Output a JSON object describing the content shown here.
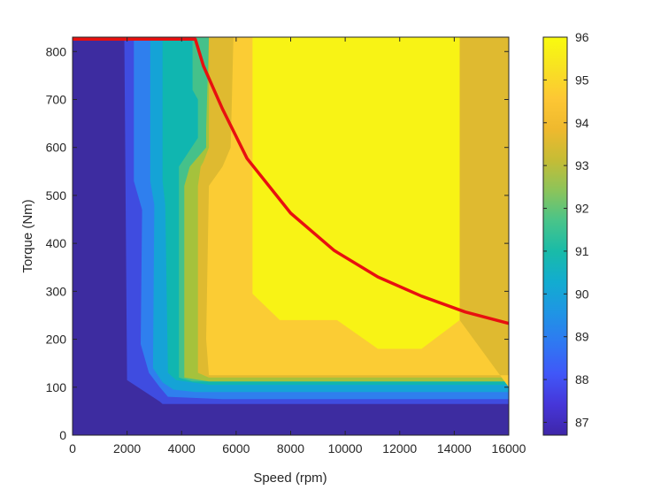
{
  "chart_data": {
    "type": "heatmap",
    "subtype": "filled-contour",
    "title": "",
    "xlabel": "Speed (rpm)",
    "ylabel": "Torque (Nm)",
    "xlim": [
      0,
      16000
    ],
    "ylim": [
      0,
      830
    ],
    "xticks": [
      0,
      2000,
      4000,
      6000,
      8000,
      10000,
      12000,
      14000,
      16000
    ],
    "yticks": [
      0,
      100,
      200,
      300,
      400,
      500,
      600,
      700,
      800
    ],
    "colorbar": {
      "label": "",
      "range": [
        86.7,
        96
      ],
      "ticks": [
        87,
        88,
        89,
        90,
        91,
        92,
        93,
        94,
        95,
        96
      ]
    },
    "grid": false,
    "colormap": "parula",
    "contour_regions": [
      {
        "level": 86.7,
        "color": "#3d2ca0",
        "x": [
          0,
          16000,
          16000,
          0
        ],
        "y": [
          0,
          0,
          830,
          830
        ]
      },
      {
        "level": 87.9,
        "color": "#3f4ce0",
        "x": [
          1900,
          2000,
          3200,
          3300,
          16000,
          16000,
          16000,
          4400,
          4400
        ],
        "y": [
          830,
          115,
          70,
          65,
          65,
          830,
          830,
          830,
          830
        ]
      },
      {
        "level": 88.9,
        "color": "#2f7fee",
        "x": [
          2250,
          2250,
          2550,
          2500,
          2800,
          3200,
          3500,
          5500,
          16000,
          16000,
          4500,
          4500,
          2500
        ],
        "y": [
          830,
          530,
          470,
          190,
          130,
          100,
          80,
          75,
          75,
          830,
          830,
          830,
          830
        ]
      },
      {
        "level": 89.9,
        "color": "#15a3d6",
        "x": [
          2850,
          2850,
          3000,
          2950,
          3300,
          3700,
          4500,
          16000,
          16000,
          4400
        ],
        "y": [
          830,
          530,
          480,
          140,
          110,
          95,
          90,
          90,
          830,
          830
        ]
      },
      {
        "level": 90.9,
        "color": "#10b6b0",
        "x": [
          3300,
          3300,
          3400,
          3500,
          3800,
          5000,
          16000,
          16000,
          4400
        ],
        "y": [
          830,
          530,
          480,
          130,
          115,
          105,
          105,
          830,
          830
        ]
      },
      {
        "level": 91.9,
        "color": "#45c18a",
        "x": [
          4400,
          4400,
          4600,
          4600,
          3900,
          3900,
          4400,
          5000,
          16000,
          16000
        ],
        "y": [
          830,
          720,
          700,
          620,
          560,
          120,
          112,
          112,
          112,
          830
        ]
      },
      {
        "level": 92.9,
        "color": "#a5c23c",
        "x": [
          4500,
          5000,
          4900,
          4900,
          4300,
          4100,
          4100,
          5000,
          16000,
          16000
        ],
        "y": [
          830,
          830,
          640,
          600,
          560,
          520,
          120,
          112,
          112,
          830
        ]
      },
      {
        "level": 93.9,
        "color": "#dfba30",
        "x": [
          4800,
          5000,
          5000,
          4800,
          4700,
          4600,
          4600,
          5000,
          16000,
          16000,
          5000
        ],
        "y": [
          830,
          830,
          600,
          570,
          560,
          520,
          130,
          120,
          120,
          830,
          830
        ]
      },
      {
        "level": 94.9,
        "color": "#fbcc34",
        "x": [
          5000,
          5900,
          5800,
          5500,
          5000,
          4900,
          5000,
          16000,
          16000,
          14200,
          14200,
          5200
        ],
        "y": [
          830,
          830,
          600,
          560,
          520,
          200,
          125,
          125,
          100,
          240,
          830,
          830
        ]
      },
      {
        "level": 95.7,
        "color": "#f8f315",
        "x": [
          6600,
          6600,
          7600,
          9700,
          11200,
          12800,
          14200,
          14200
        ],
        "y": [
          830,
          295,
          240,
          240,
          180,
          180,
          240,
          830
        ]
      }
    ],
    "series": [
      {
        "name": "",
        "color": "#e81010",
        "x": [
          0,
          4500,
          4800,
          5500,
          6400,
          8000,
          9600,
          11200,
          12800,
          14400,
          16000
        ],
        "y": [
          826,
          826,
          770,
          680,
          577,
          463,
          385,
          330,
          290,
          257,
          233
        ]
      }
    ]
  }
}
